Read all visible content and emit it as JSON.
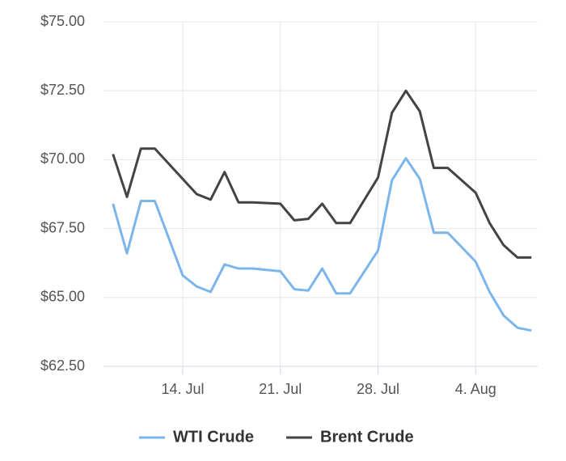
{
  "chart_data": {
    "type": "line",
    "x": [
      "9. Jul",
      "10. Jul",
      "11. Jul",
      "12. Jul",
      "14. Jul",
      "15. Jul",
      "16. Jul",
      "17. Jul",
      "18. Jul",
      "19. Jul",
      "21. Jul",
      "22. Jul",
      "23. Jul",
      "24. Jul",
      "25. Jul",
      "26. Jul",
      "28. Jul",
      "29. Jul",
      "30. Jul",
      "31. Jul",
      "1. Aug",
      "2. Aug",
      "4. Aug",
      "5. Aug",
      "6. Aug",
      "7. Aug",
      "8. Aug"
    ],
    "series": [
      {
        "name": "WTI Crude",
        "color": "#7cb5ec",
        "values": [
          68.4,
          66.6,
          68.5,
          68.5,
          65.8,
          65.4,
          65.2,
          66.2,
          66.05,
          66.05,
          65.95,
          65.3,
          65.25,
          66.05,
          65.15,
          65.15,
          66.7,
          69.25,
          70.05,
          69.3,
          67.35,
          67.35,
          66.3,
          65.2,
          64.35,
          63.9,
          63.8
        ]
      },
      {
        "name": "Brent Crude",
        "color": "#434348",
        "values": [
          70.2,
          68.65,
          70.4,
          70.4,
          69.3,
          68.75,
          68.55,
          69.55,
          68.45,
          68.45,
          68.4,
          67.8,
          67.85,
          68.4,
          67.7,
          67.7,
          69.35,
          71.7,
          72.5,
          71.75,
          69.7,
          69.7,
          68.8,
          67.7,
          66.9,
          66.45,
          66.45
        ]
      }
    ],
    "xlim": [
      "8. Jul",
      "9. Aug"
    ],
    "xticks": [
      "14. Jul",
      "21. Jul",
      "28. Jul",
      "4. Aug"
    ],
    "ylim": [
      62.5,
      75
    ],
    "yticks": [
      {
        "value": 62.5,
        "label": "$62.50"
      },
      {
        "value": 65,
        "label": "$65.00"
      },
      {
        "value": 67.5,
        "label": "$67.50"
      },
      {
        "value": 70,
        "label": "$70.00"
      },
      {
        "value": 72.5,
        "label": "$72.50"
      },
      {
        "value": 75,
        "label": "$75.00"
      }
    ],
    "grid": true,
    "legend": "bottom"
  }
}
